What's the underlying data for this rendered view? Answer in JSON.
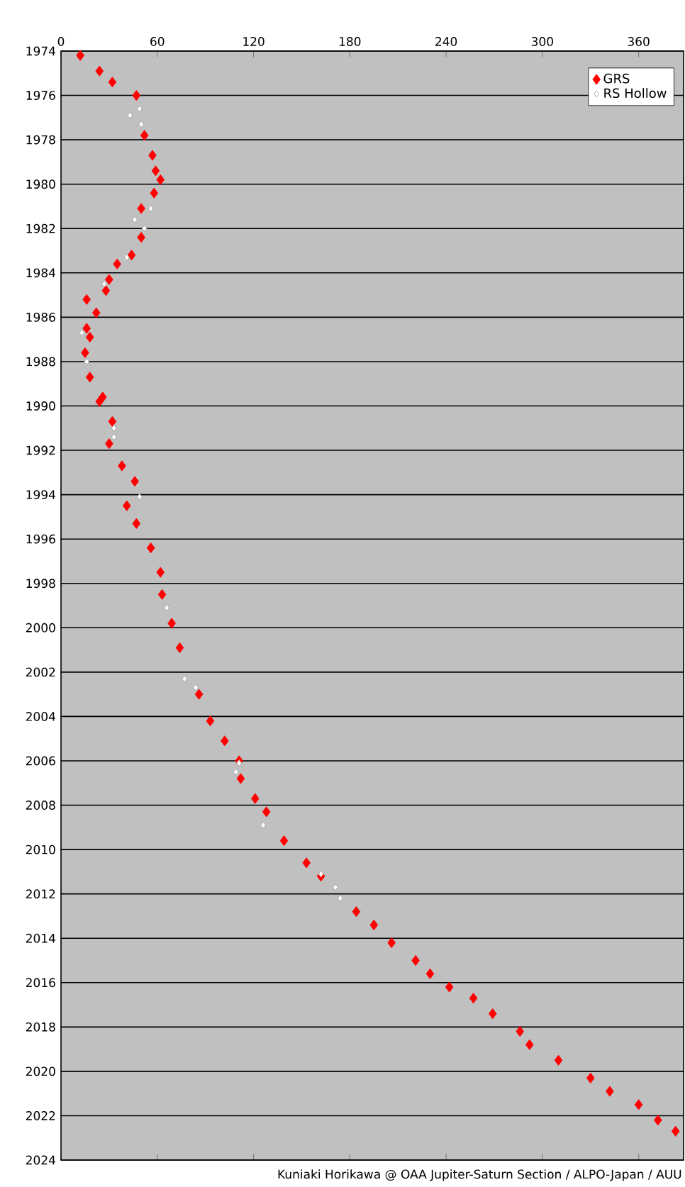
{
  "chart_data": {
    "type": "scatter",
    "xlim": [
      0,
      388
    ],
    "ylim": [
      2024,
      1974
    ],
    "xticks": [
      0,
      60,
      120,
      180,
      240,
      300,
      360
    ],
    "yticks": [
      1974,
      1976,
      1978,
      1980,
      1982,
      1984,
      1986,
      1988,
      1990,
      1992,
      1994,
      1996,
      1998,
      2000,
      2002,
      2004,
      2006,
      2008,
      2010,
      2012,
      2014,
      2016,
      2018,
      2020,
      2022,
      2024
    ],
    "grid": "y",
    "legend": "top right",
    "marker": "diamond",
    "series": [
      {
        "name": "GRS",
        "color": "#ff0000",
        "x": [
          12,
          24,
          32,
          47,
          52,
          57,
          59,
          62,
          58,
          50,
          50,
          44,
          35,
          30,
          28,
          16,
          22,
          16,
          18,
          15,
          18,
          26,
          24,
          32,
          30,
          38,
          46,
          41,
          47,
          56,
          62,
          63,
          69,
          74,
          86,
          93,
          102,
          111,
          112,
          121,
          128,
          139,
          153,
          162,
          184,
          195,
          206,
          221,
          230,
          242,
          257,
          269,
          286,
          292,
          310,
          330,
          342,
          360,
          372,
          383
        ],
        "values": [
          1974.2,
          1974.9,
          1975.4,
          1976.0,
          1977.8,
          1978.7,
          1979.4,
          1979.8,
          1980.4,
          1981.1,
          1982.4,
          1983.2,
          1983.6,
          1984.3,
          1984.8,
          1985.2,
          1985.8,
          1986.5,
          1986.9,
          1987.6,
          1988.7,
          1989.6,
          1989.8,
          1990.7,
          1991.7,
          1992.7,
          1993.4,
          1994.5,
          1995.3,
          1996.4,
          1997.5,
          1998.5,
          1999.8,
          2000.9,
          2003.0,
          2004.2,
          2005.1,
          2006.0,
          2006.8,
          2007.7,
          2008.3,
          2009.6,
          2010.6,
          2011.2,
          2012.8,
          2013.4,
          2014.2,
          2015.0,
          2015.6,
          2016.2,
          2016.7,
          2017.4,
          2018.2,
          2018.8,
          2019.5,
          2020.3,
          2020.9,
          2021.5,
          2022.2,
          2022.7
        ]
      },
      {
        "name": "RS Hollow",
        "color": "#ffffff",
        "x": [
          43,
          49,
          50,
          56,
          46,
          52,
          41,
          27,
          13,
          16,
          33,
          33,
          49,
          66,
          77,
          84,
          111,
          109,
          126,
          162,
          171,
          174
        ],
        "values": [
          1976.9,
          1976.6,
          1977.3,
          1981.1,
          1981.6,
          1982.0,
          1983.3,
          1984.5,
          1986.7,
          1988.0,
          1991.0,
          1991.4,
          1994.1,
          1999.1,
          2002.3,
          2002.7,
          2006.1,
          2006.5,
          2008.9,
          2011.1,
          2011.7,
          2012.2
        ]
      }
    ],
    "annotations": [
      "Kuniaki Horikawa @ OAA Jupiter-Saturn Section / ALPO-Japan / AUU"
    ]
  }
}
